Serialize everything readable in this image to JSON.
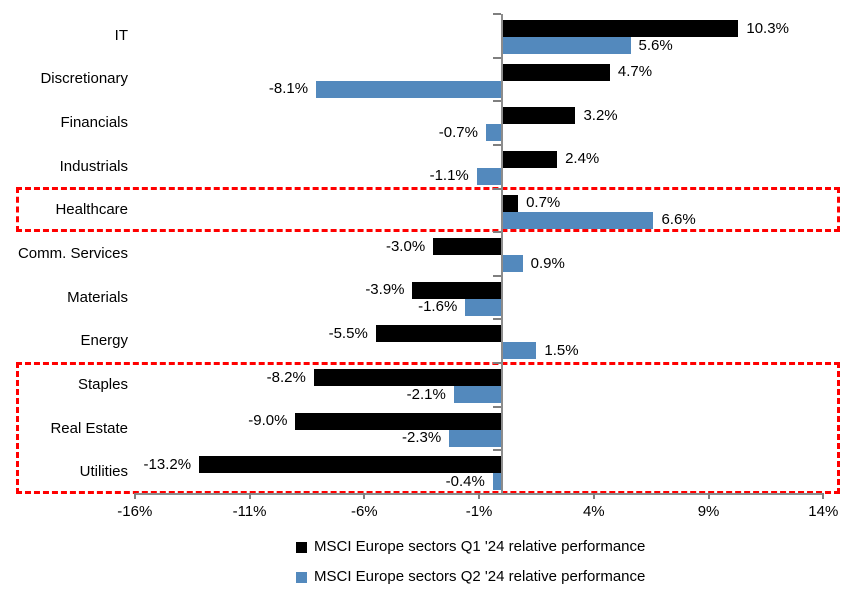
{
  "chart_data": {
    "type": "bar",
    "orientation": "horizontal",
    "title": "",
    "categories": [
      "IT",
      "Discretionary",
      "Financials",
      "Industrials",
      "Healthcare",
      "Comm. Services",
      "Materials",
      "Energy",
      "Staples",
      "Real Estate",
      "Utilities"
    ],
    "series": [
      {
        "name": "MSCI Europe sectors Q1 '24 relative performance",
        "color": "#000000",
        "values": [
          10.3,
          4.7,
          3.2,
          2.4,
          0.7,
          -3.0,
          -3.9,
          -5.5,
          -8.2,
          -9.0,
          -13.2
        ]
      },
      {
        "name": "MSCI Europe sectors Q2 '24 relative performance",
        "color": "#5389bd",
        "values": [
          5.6,
          -8.1,
          -0.7,
          -1.1,
          6.6,
          0.9,
          -1.6,
          1.5,
          -2.1,
          -2.3,
          -0.4
        ]
      }
    ],
    "x_axis": {
      "tick_labels": [
        "-16%",
        "-11%",
        "-6%",
        "-1%",
        "4%",
        "9%",
        "14%"
      ],
      "tick_values": [
        -16,
        -11,
        -6,
        -1,
        4,
        9,
        14
      ],
      "min": -16,
      "max": 14,
      "unit": "%"
    },
    "data_label_format": "one-decimal-percent",
    "grid": "off",
    "legend_position": "bottom",
    "highlights": [
      {
        "name": "healthcare-box",
        "first_category": "Healthcare",
        "last_category": "Healthcare",
        "color": "#ff0000"
      },
      {
        "name": "defensives-box",
        "first_category": "Staples",
        "last_category": "Utilities",
        "color": "#ff0000"
      }
    ]
  },
  "legend": {
    "q1_label": "MSCI Europe sectors Q1 '24 relative performance",
    "q2_label": "MSCI Europe sectors Q2 '24 relative performance"
  },
  "colors": {
    "q1_bar": "#000000",
    "q2_bar": "#5389bd",
    "highlight_red": "#ff0000",
    "axis_gray": "#8c8c8c"
  }
}
